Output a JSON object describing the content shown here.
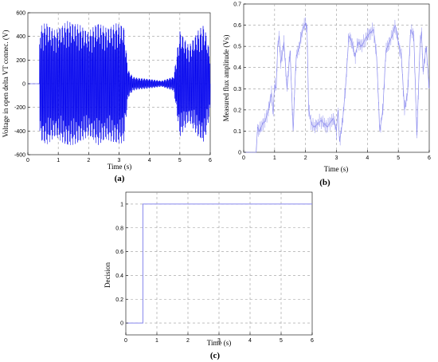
{
  "chart_data": [
    {
      "type": "line",
      "panel_label": "(a)",
      "xlabel": "Time (s)",
      "ylabel": "Voltage in open delta VT connec. (V)",
      "xlim": [
        0,
        6
      ],
      "ylim": [
        -600,
        600
      ],
      "xticks": [
        "0",
        "1",
        "2",
        "3",
        "4",
        "5",
        "6"
      ],
      "yticks": [
        "-600",
        "-400",
        "-200",
        "0",
        "200",
        "400",
        "600"
      ],
      "grid": true,
      "color": "#0000ee",
      "series": [
        {
          "x": [
            0,
            0.35,
            0.4,
            0.6,
            0.9,
            1.3,
            1.7,
            2.0,
            2.3,
            2.6,
            2.9,
            3.15,
            3.3,
            3.45,
            3.6,
            4.0,
            4.4,
            4.8,
            5.0,
            5.3,
            5.6,
            5.8,
            6.0
          ],
          "y": [
            0,
            0,
            480,
            520,
            450,
            530,
            500,
            440,
            520,
            470,
            510,
            500,
            120,
            60,
            50,
            40,
            25,
            60,
            450,
            320,
            450,
            500,
            250
          ]
        }
      ]
    },
    {
      "type": "line",
      "panel_label": "(b)",
      "xlabel": "Time (s)",
      "ylabel": "Measured flux amplitude (Vs)",
      "xlim": [
        0,
        6
      ],
      "ylim": [
        0,
        0.7
      ],
      "xticks": [
        "0",
        "1",
        "2",
        "3",
        "4",
        "5",
        "6"
      ],
      "yticks": [
        "0",
        "0.1",
        "0.2",
        "0.3",
        "0.4",
        "0.5",
        "0.6",
        "0.7"
      ],
      "grid": true,
      "color": "#8888ee",
      "series": [
        {
          "x": [
            0,
            0.4,
            0.45,
            0.5,
            0.6,
            0.7,
            0.8,
            0.9,
            0.95,
            1.0,
            1.05,
            1.1,
            1.15,
            1.2,
            1.3,
            1.4,
            1.5,
            1.6,
            1.65,
            1.7,
            1.8,
            1.9,
            2.0,
            2.05,
            2.1,
            2.2,
            2.3,
            2.5,
            2.7,
            2.9,
            3.0,
            3.05,
            3.1,
            3.2,
            3.3,
            3.4,
            3.5,
            3.6,
            3.7,
            3.8,
            4.0,
            4.2,
            4.3,
            4.4,
            4.5,
            4.6,
            4.8,
            4.9,
            5.0,
            5.1,
            5.2,
            5.3,
            5.4,
            5.5,
            5.6,
            5.7,
            5.75,
            5.8,
            5.9,
            6.0
          ],
          "y": [
            0,
            0,
            0.12,
            0.1,
            0.13,
            0.15,
            0.2,
            0.28,
            0.18,
            0.32,
            0.3,
            0.5,
            0.55,
            0.42,
            0.52,
            0.3,
            0.48,
            0.1,
            0.3,
            0.45,
            0.5,
            0.58,
            0.61,
            0.58,
            0.2,
            0.13,
            0.12,
            0.15,
            0.12,
            0.16,
            0.1,
            0.2,
            0.05,
            0.15,
            0.32,
            0.55,
            0.52,
            0.45,
            0.52,
            0.5,
            0.55,
            0.58,
            0.45,
            0.1,
            0.2,
            0.48,
            0.55,
            0.6,
            0.52,
            0.45,
            0.2,
            0.28,
            0.58,
            0.55,
            0.08,
            0.5,
            0.57,
            0.38,
            0.5,
            0.3
          ]
        }
      ]
    },
    {
      "type": "line",
      "panel_label": "(c)",
      "xlabel": "Time (s)",
      "ylabel": "Decision",
      "xlim": [
        0,
        6
      ],
      "ylim": [
        -0.1,
        1.1
      ],
      "xticks": [
        "0",
        "1",
        "2",
        "3",
        "4",
        "5",
        "6"
      ],
      "yticks": [
        "0",
        "0.2",
        "0.4",
        "0.6",
        "0.8",
        "1"
      ],
      "grid": true,
      "color": "#8888ee",
      "series": [
        {
          "x": [
            0,
            0.55,
            0.55,
            6.0
          ],
          "y": [
            0,
            0,
            1,
            1
          ]
        }
      ]
    }
  ]
}
